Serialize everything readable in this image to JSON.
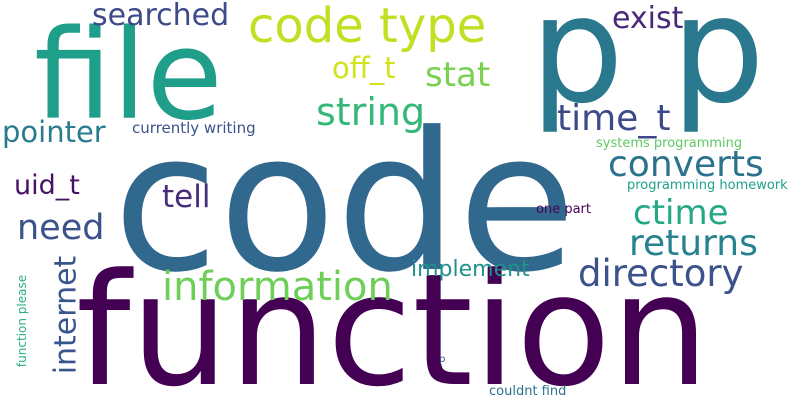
{
  "words": [
    {
      "id": "code",
      "text": "code",
      "color": "#31688e"
    },
    {
      "id": "function",
      "text": "function",
      "color": "#440154"
    },
    {
      "id": "file",
      "text": "file",
      "color": "#1f9e89"
    },
    {
      "id": "p-p",
      "text": "p p",
      "color": "#2a788e"
    },
    {
      "id": "code-type",
      "text": "code type",
      "color": "#c2df23"
    },
    {
      "id": "information",
      "text": "information",
      "color": "#6ece58"
    },
    {
      "id": "directory",
      "text": "directory",
      "color": "#3b528b"
    },
    {
      "id": "time-t",
      "text": "time_t",
      "color": "#3e4989"
    },
    {
      "id": "string",
      "text": "string",
      "color": "#35b779"
    },
    {
      "id": "converts",
      "text": "converts",
      "color": "#2c728e"
    },
    {
      "id": "returns",
      "text": "returns",
      "color": "#26828e"
    },
    {
      "id": "ctime",
      "text": "ctime",
      "color": "#22a884"
    },
    {
      "id": "need",
      "text": "need",
      "color": "#3b528b"
    },
    {
      "id": "searched",
      "text": "searched",
      "color": "#3e4a89"
    },
    {
      "id": "stat",
      "text": "stat",
      "color": "#7ad151"
    },
    {
      "id": "off-t",
      "text": "off_t",
      "color": "#d2e21b"
    },
    {
      "id": "exist",
      "text": "exist",
      "color": "#482878"
    },
    {
      "id": "tell",
      "text": "tell",
      "color": "#472d7b"
    },
    {
      "id": "uid-t",
      "text": "uid_t",
      "color": "#471164"
    },
    {
      "id": "pointer",
      "text": "pointer",
      "color": "#287c8e"
    },
    {
      "id": "internet",
      "text": "internet",
      "color": "#39568c"
    },
    {
      "id": "implement",
      "text": "implement",
      "color": "#21918c"
    },
    {
      "id": "currently-writing",
      "text": "currently writing",
      "color": "#3b528b"
    },
    {
      "id": "systems-programming",
      "text": "systems programming",
      "color": "#5ec962"
    },
    {
      "id": "programming-homework",
      "text": "programming homework",
      "color": "#1fa088"
    },
    {
      "id": "one-part",
      "text": "one part",
      "color": "#440154"
    },
    {
      "id": "function-please",
      "text": "function please",
      "color": "#29af7f"
    },
    {
      "id": "couldnt-find",
      "text": "couldnt find",
      "color": "#2c718e"
    },
    {
      "id": "p",
      "text": "p",
      "color": "#3e4989"
    }
  ]
}
